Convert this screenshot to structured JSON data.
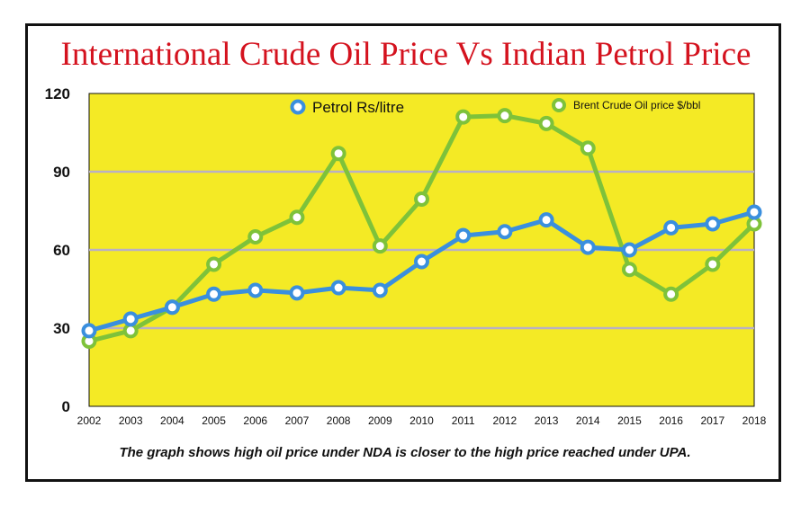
{
  "header": {
    "title": "International Crude Oil Price Vs Indian Petrol Price"
  },
  "caption": "The graph shows high oil price under NDA is closer to the high price reached under UPA.",
  "colors": {
    "plot_background": "#f4ea25",
    "petrol": "#3a8fde",
    "brent": "#7ec23a",
    "title": "#d4121e",
    "grid": "#b9b0c4"
  },
  "chart_data": {
    "type": "line",
    "title": "International Crude Oil Price Vs Indian Petrol Price",
    "xlabel": "",
    "ylabel": "",
    "ylim": [
      0,
      120
    ],
    "yticks": [
      0,
      30,
      60,
      90,
      120
    ],
    "grid": true,
    "legend_position": "top",
    "categories": [
      "2002",
      "2003",
      "2004",
      "2005",
      "2006",
      "2007",
      "2008",
      "2009",
      "2010",
      "2011",
      "2012",
      "2013",
      "2014",
      "2015",
      "2016",
      "2017",
      "2018"
    ],
    "series": [
      {
        "name": "Petrol Rs/litre",
        "color": "#3a8fde",
        "values": [
          29,
          33.5,
          38,
          43,
          44.5,
          43.5,
          45.5,
          44.5,
          55.5,
          65.5,
          67,
          71.5,
          61,
          60,
          68.5,
          70,
          74.5
        ]
      },
      {
        "name": "Brent Crude Oil price $/bbl",
        "color": "#7ec23a",
        "values": [
          25,
          29,
          38,
          54.5,
          65,
          72.5,
          97,
          61.5,
          79.5,
          111,
          111.5,
          108.5,
          99,
          52.5,
          43,
          54.5,
          70
        ]
      }
    ]
  }
}
